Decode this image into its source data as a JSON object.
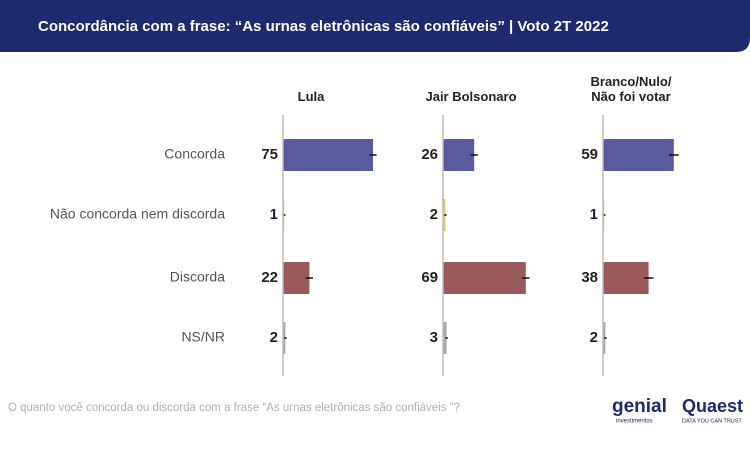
{
  "chart_data": {
    "type": "bar",
    "title": "Concordância com a frase: “As urnas eletrônicas são confiáveis” | Voto 2T 2022",
    "footnote": "O quanto você concorda ou discorda com a frase “As urnas eletrônicas são confiáveis ”?",
    "categories": [
      "Concorda",
      "Não concorda nem discorda",
      "Discorda",
      "NS/NR"
    ],
    "colors": [
      "#5b5a9e",
      "#e3c46a",
      "#9a5a5c",
      "#aaaaaa"
    ],
    "xlim": [
      0,
      100
    ],
    "series": [
      {
        "name": "Lula",
        "values": [
          75,
          1,
          22,
          2
        ],
        "errors": [
          3,
          1,
          3,
          1
        ]
      },
      {
        "name": "Jair Bolsonaro",
        "values": [
          26,
          2,
          69,
          3
        ],
        "errors": [
          3,
          1,
          3,
          1
        ]
      },
      {
        "name": "Branco/Nulo/ Não foi votar",
        "values": [
          59,
          1,
          38,
          2
        ],
        "errors": [
          4,
          1,
          4,
          1
        ]
      }
    ],
    "logos": {
      "genial": "genial",
      "genial_sub": "investimentos",
      "quaest": "Quaest",
      "quaest_sub": "DATA YOU CAN TRUST"
    }
  }
}
